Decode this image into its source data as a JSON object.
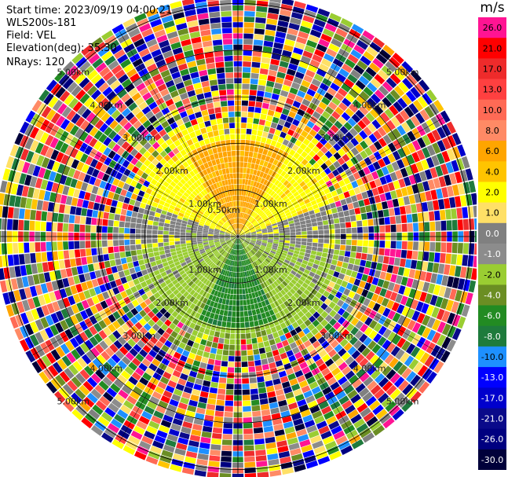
{
  "header": {
    "start_time": "Start time: 2023/09/19 04:00:21",
    "site": "WLS200s-181",
    "field": "Field: VEL",
    "elevation": "Elevation(deg): 35.30",
    "nrays": "NRays: 120"
  },
  "colorbar": {
    "unit": "m/s",
    "ticks": [
      "26.0",
      "21.0",
      "17.0",
      "13.0",
      "10.0",
      "8.0",
      "6.0",
      "4.0",
      "2.0",
      "1.0",
      "0.0",
      "-1.0",
      "-2.0",
      "-4.0",
      "-6.0",
      "-8.0",
      "-10.0",
      "-13.0",
      "-17.0",
      "-21.0",
      "-26.0",
      "-30.0"
    ],
    "colors": [
      "#ff1493",
      "#ff0000",
      "#ee2b2b",
      "#ff4040",
      "#ff6a55",
      "#ff8a65",
      "#ffa500",
      "#ffc400",
      "#ffff00",
      "#ffe066",
      "#808080",
      "#8c8c8c",
      "#9acd32",
      "#6b8e23",
      "#228b22",
      "#1e7b3c",
      "#1e90ff",
      "#0000ff",
      "#0000cd",
      "#0a0a8a",
      "#000080",
      "#00003a"
    ]
  },
  "chart_data": {
    "type": "heatmap",
    "field": "VEL",
    "units": "m/s",
    "n_rays": 120,
    "elevation_deg": 35.3,
    "range_rings_km": [
      0.5,
      1.0,
      1.5,
      2.0,
      2.5,
      3.0,
      3.5,
      4.0,
      4.5,
      5.0
    ],
    "ring_labels": [
      "0.50km",
      "1.00km",
      "2.00km",
      "3.00km",
      "4.00km",
      "5.00km"
    ],
    "velocity_regions": [
      {
        "sector": "north (aloft)",
        "ranges_km": [
          0,
          2.2
        ],
        "velocity_mps": [
          4.0,
          8.0
        ]
      },
      {
        "sector": "north-east / north-west flanks",
        "ranges_km": [
          0,
          2.5
        ],
        "velocity_mps": [
          1.0,
          4.0
        ]
      },
      {
        "sector": "east / west",
        "ranges_km": [
          0,
          2.5
        ],
        "velocity_mps": [
          -1.0,
          1.0
        ]
      },
      {
        "sector": "south",
        "ranges_km": [
          0,
          2.2
        ],
        "velocity_mps": [
          -8.0,
          -2.0
        ]
      },
      {
        "sector": "beyond ~2.6 km (noise)",
        "ranges_km": [
          2.6,
          5.0
        ],
        "velocity_mps": [
          -30.0,
          26.0
        ]
      }
    ]
  }
}
